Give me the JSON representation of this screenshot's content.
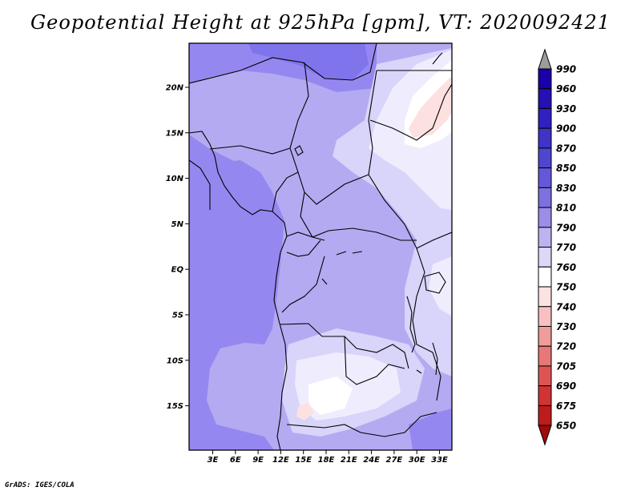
{
  "title": "Geopotential Height at 925hPa [gpm], VT: 2020092421",
  "footer": "GrADS: IGES/COLA",
  "map": {
    "lat_labels": [
      "20N",
      "15N",
      "10N",
      "5N",
      "EQ",
      "5S",
      "10S",
      "15S"
    ],
    "lon_labels": [
      "3E",
      "6E",
      "9E",
      "12E",
      "15E",
      "18E",
      "21E",
      "24E",
      "27E",
      "30E",
      "33E"
    ]
  },
  "colorbar": {
    "levels": [
      "990",
      "960",
      "930",
      "900",
      "870",
      "850",
      "830",
      "810",
      "790",
      "770",
      "760",
      "750",
      "740",
      "730",
      "720",
      "705",
      "690",
      "675",
      "650"
    ],
    "colors": [
      "#1a00a8",
      "#2410b4",
      "#3020c0",
      "#3f33c8",
      "#4f46d0",
      "#6558d8",
      "#7d70e0",
      "#9a8ee8",
      "#bcb4f0",
      "#dcd8f8",
      "#ffffff",
      "#fde2e2",
      "#f8c0c0",
      "#f09c9c",
      "#e87878",
      "#de5454",
      "#d03434",
      "#bc1c1c",
      "#a00a0a"
    ]
  },
  "fields": {
    "shades": {
      "background": "#b4aaf2",
      "high_870": "#8074ec",
      "high_850": "#9488f0",
      "mid_810": "#b6adf4",
      "low_790": "#d8d4fa",
      "low_770": "#efedfd",
      "min_760": "#ffffff",
      "trough_750": "#fde0e0"
    }
  }
}
